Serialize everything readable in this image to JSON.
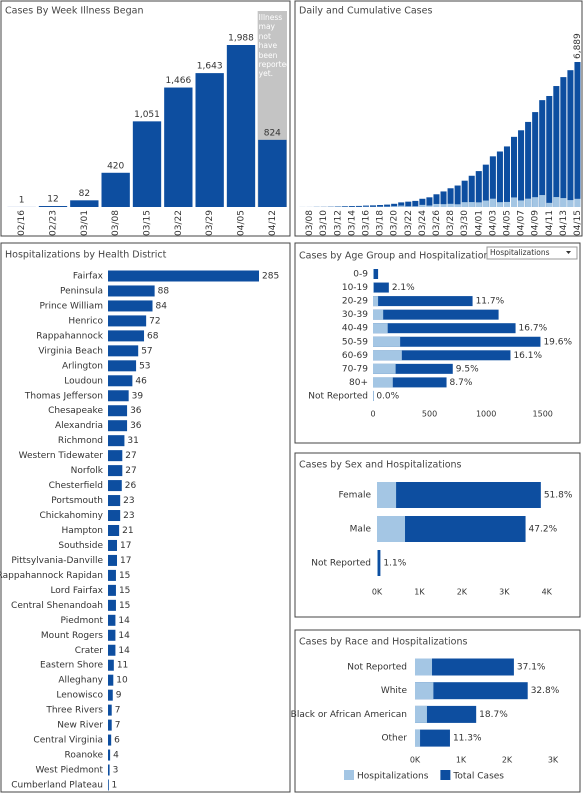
{
  "chart_data": [
    {
      "type": "bar",
      "title": "Cases By Week Illness Began",
      "categories": [
        "02/16",
        "02/23",
        "03/01",
        "03/08",
        "03/15",
        "03/22",
        "03/29",
        "04/05",
        "04/12"
      ],
      "values": [
        1,
        12,
        82,
        420,
        1051,
        1466,
        1643,
        1988,
        824
      ],
      "value_labels": [
        "1",
        "12",
        "82",
        "420",
        "1,051",
        "1,466",
        "1,643",
        "1,988",
        "824"
      ],
      "color": "#0d4ea0",
      "annotation": "Illness may not have been reported yet."
    },
    {
      "type": "bar",
      "title": "Daily and Cumulative Cases",
      "categories": [
        null,
        "03/08",
        null,
        "03/10",
        null,
        "03/12",
        null,
        "03/14",
        null,
        "03/16",
        null,
        "03/18",
        null,
        "03/20",
        null,
        "03/22",
        null,
        "03/24",
        null,
        "03/26",
        null,
        "03/28",
        null,
        "03/30",
        null,
        "04/01",
        null,
        "04/03",
        null,
        "04/05",
        null,
        "04/07",
        null,
        "04/09",
        null,
        "04/11",
        null,
        "04/13",
        null,
        "04/15"
      ],
      "series": [
        {
          "color": "#0d4ea0",
          "values": [
            2,
            3,
            8,
            9,
            17,
            30,
            41,
            45,
            51,
            67,
            77,
            94,
            114,
            152,
            219,
            254,
            290,
            391,
            460,
            604,
            739,
            890,
            1020,
            1250,
            1484,
            1706,
            2012,
            2407,
            2637,
            2878,
            3333,
            3645,
            4042,
            4509,
            5077,
            5274,
            5747,
            6171,
            6500,
            6889
          ],
          "value_labels": [
            null,
            null,
            null,
            null,
            null,
            null,
            null,
            null,
            null,
            null,
            null,
            null,
            null,
            null,
            null,
            null,
            null,
            null,
            null,
            null,
            null,
            null,
            null,
            null,
            null,
            null,
            null,
            null,
            null,
            null,
            null,
            null,
            null,
            null,
            null,
            null,
            null,
            null,
            null,
            "6,889"
          ]
        },
        {
          "color": "#a4c6e4",
          "values": [
            2,
            1,
            5,
            1,
            8,
            13,
            11,
            4,
            6,
            16,
            10,
            17,
            20,
            38,
            67,
            35,
            36,
            101,
            69,
            144,
            135,
            151,
            130,
            230,
            234,
            222,
            306,
            395,
            230,
            241,
            455,
            312,
            397,
            467,
            568,
            197,
            473,
            424,
            329,
            389
          ]
        }
      ]
    },
    {
      "type": "barh",
      "title": "Hospitalizations by Health District",
      "categories": [
        "Fairfax",
        "Peninsula",
        "Prince William",
        "Henrico",
        "Rappahannock",
        "Virginia Beach",
        "Arlington",
        "Loudoun",
        "Thomas Jefferson",
        "Chesapeake",
        "Alexandria",
        "Richmond",
        "Western Tidewater",
        "Norfolk",
        "Chesterfield",
        "Portsmouth",
        "Chickahominy",
        "Hampton",
        "Southside",
        "Pittsylvania-Danville",
        "Rappahannock Rapidan",
        "Lord Fairfax",
        "Central Shenandoah",
        "Piedmont",
        "Mount Rogers",
        "Crater",
        "Eastern Shore",
        "Alleghany",
        "Lenowisco",
        "Three Rivers",
        "New River",
        "Central Virginia",
        "Roanoke",
        "West Piedmont",
        "Cumberland Plateau"
      ],
      "values": [
        285,
        88,
        84,
        72,
        68,
        57,
        53,
        46,
        39,
        36,
        36,
        31,
        27,
        27,
        26,
        23,
        23,
        21,
        17,
        17,
        15,
        15,
        15,
        14,
        14,
        14,
        11,
        10,
        9,
        7,
        7,
        6,
        4,
        3,
        1
      ],
      "color": "#0d4ea0"
    },
    {
      "type": "barh",
      "title": "Cases by Age Group and Hospitalizations",
      "filter": "Hospitalizations",
      "categories": [
        "0-9",
        "10-19",
        "20-29",
        "30-39",
        "40-49",
        "50-59",
        "60-69",
        "70-79",
        "80+",
        "Not Reported"
      ],
      "series": [
        {
          "color": "#0d4ea0",
          "values": [
            45,
            140,
            880,
            1110,
            1260,
            1480,
            1215,
            705,
            650,
            3
          ]
        },
        {
          "color": "#a4c6e4",
          "values": [
            2,
            8,
            45,
            90,
            130,
            240,
            255,
            200,
            175,
            1
          ]
        }
      ],
      "labels": [
        null,
        "2.1%",
        "11.7%",
        null,
        "16.7%",
        "19.6%",
        "16.1%",
        "9.5%",
        "8.7%",
        "0.0%"
      ],
      "xlim": [
        0,
        1750
      ],
      "xticks": [
        0,
        500,
        1000,
        1500
      ]
    },
    {
      "type": "barh",
      "title": "Cases by Sex and Hospitalizations",
      "categories": [
        "Female",
        "Male",
        "Not Reported"
      ],
      "series": [
        {
          "color": "#0d4ea0",
          "values": [
            3860,
            3500,
            80
          ]
        },
        {
          "color": "#a4c6e4",
          "values": [
            450,
            660,
            10
          ]
        }
      ],
      "labels": [
        "51.8%",
        "47.2%",
        "1.1%"
      ],
      "xlim": [
        0,
        4500
      ],
      "xticks": [
        {
          "value": 0,
          "label": "0K"
        },
        {
          "value": 1000,
          "label": "1K"
        },
        {
          "value": 2000,
          "label": "2K"
        },
        {
          "value": 3000,
          "label": "3K"
        },
        {
          "value": 4000,
          "label": "4K"
        }
      ]
    },
    {
      "type": "barh",
      "title": "Cases by Race and Hospitalizations",
      "categories": [
        "Not Reported",
        "White",
        "Black or African American",
        "Other"
      ],
      "series": [
        {
          "name": "Total Cases",
          "color": "#0d4ea0",
          "values": [
            2150,
            2450,
            1330,
            760
          ]
        },
        {
          "name": "Hospitalizations",
          "color": "#a4c6e4",
          "values": [
            370,
            400,
            260,
            110
          ]
        }
      ],
      "labels": [
        "37.1%",
        "32.8%",
        "18.7%",
        "11.3%"
      ],
      "xlim": [
        0,
        3500
      ],
      "xticks": [
        {
          "value": 0,
          "label": "0K"
        },
        {
          "value": 1000,
          "label": "1K"
        },
        {
          "value": 2000,
          "label": "2K"
        },
        {
          "value": 3000,
          "label": "3K"
        }
      ],
      "legend": "bottom"
    }
  ]
}
